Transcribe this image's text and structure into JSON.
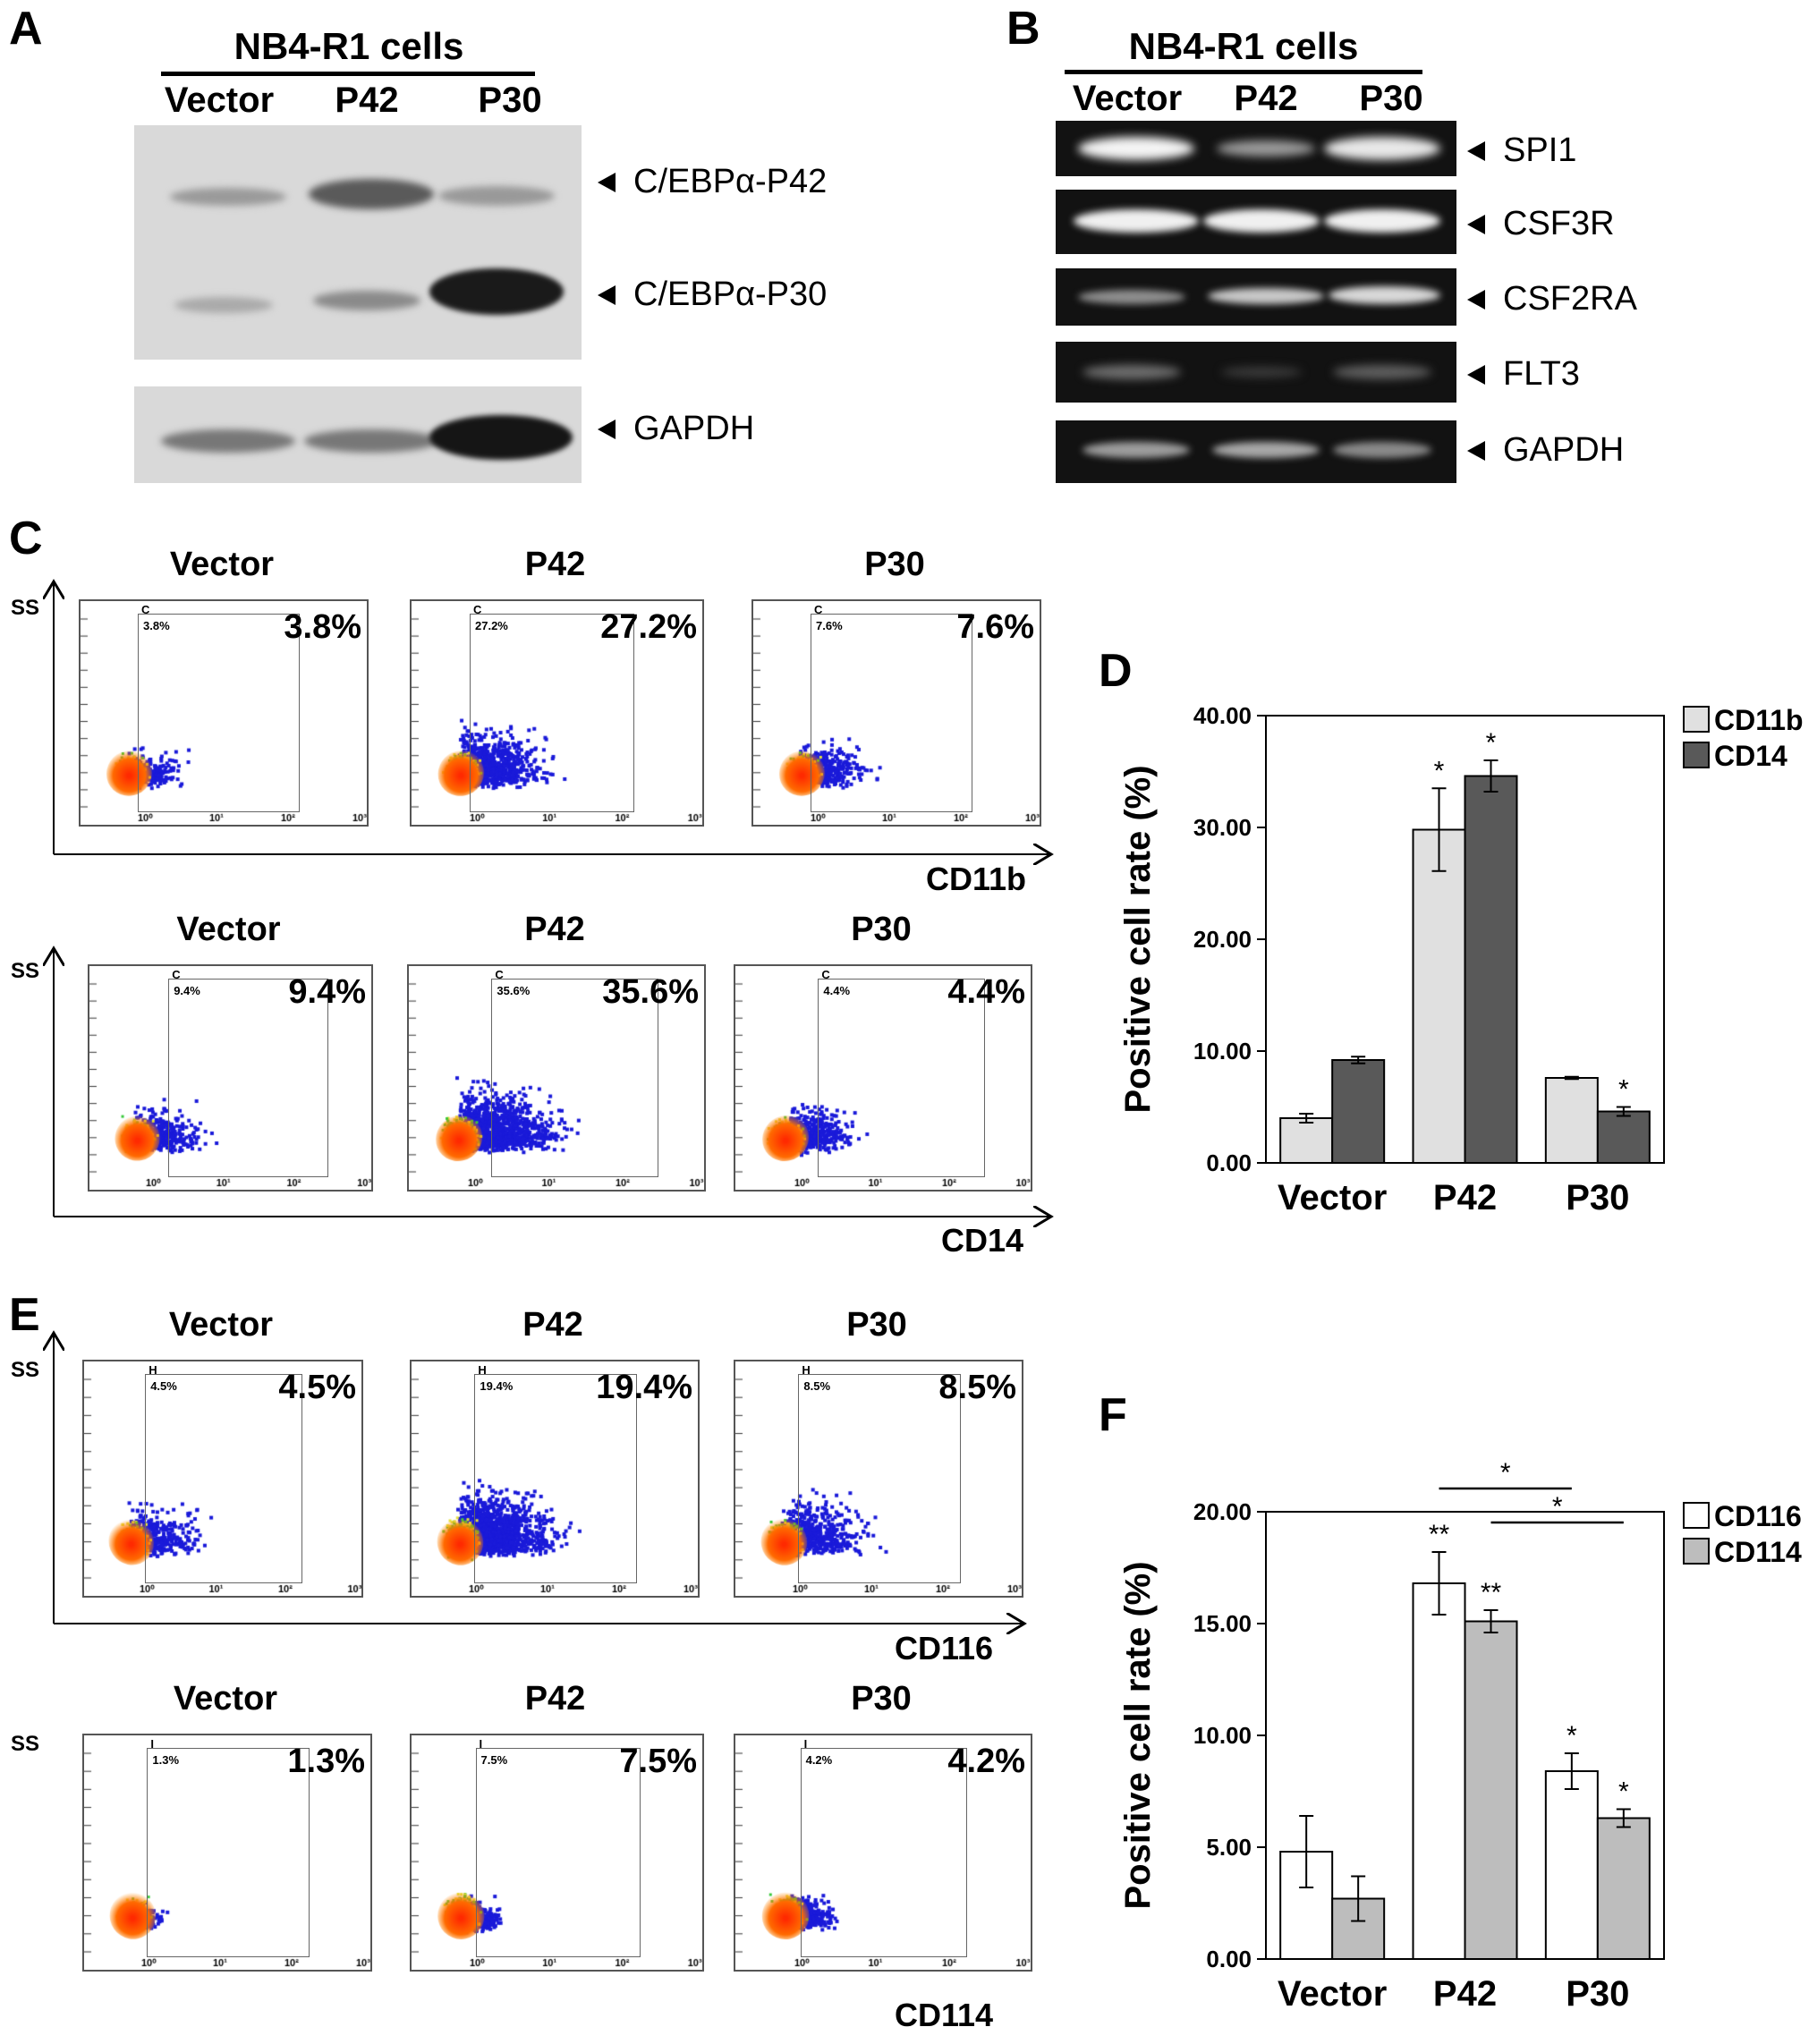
{
  "panel_a": {
    "label": "A",
    "header": "NB4-R1 cells",
    "lanes": [
      "Vector",
      "P42",
      "P30"
    ],
    "band_labels": [
      "C/EBPα-P42",
      "C/EBPα-P30",
      "GAPDH"
    ]
  },
  "panel_b": {
    "label": "B",
    "header": "NB4-R1 cells",
    "lanes": [
      "Vector",
      "P42",
      "P30"
    ],
    "genes": [
      "SPI1",
      "CSF3R",
      "CSF2RA",
      "FLT3",
      "GAPDH"
    ]
  },
  "panel_c": {
    "label": "C",
    "yaxis": "SS",
    "rows": [
      {
        "marker": "CD11b",
        "gate": "C",
        "plots": [
          {
            "title": "Vector",
            "pct": "3.8%",
            "small": "3.8%"
          },
          {
            "title": "P42",
            "pct": "27.2%",
            "small": "27.2%"
          },
          {
            "title": "P30",
            "pct": "7.6%",
            "small": "7.6%"
          }
        ]
      },
      {
        "marker": "CD14",
        "gate": "C",
        "plots": [
          {
            "title": "Vector",
            "pct": "9.4%",
            "small": "9.4%"
          },
          {
            "title": "P42",
            "pct": "35.6%",
            "small": "35.6%"
          },
          {
            "title": "P30",
            "pct": "4.4%",
            "small": "4.4%"
          }
        ]
      }
    ]
  },
  "panel_e": {
    "label": "E",
    "yaxis": "SS",
    "rows": [
      {
        "marker": "CD116",
        "gate": "H",
        "plots": [
          {
            "title": "Vector",
            "pct": "4.5%",
            "small": "4.5%"
          },
          {
            "title": "P42",
            "pct": "19.4%",
            "small": "19.4%"
          },
          {
            "title": "P30",
            "pct": "8.5%",
            "small": "8.5%"
          }
        ]
      },
      {
        "marker": "CD114",
        "gate": "I",
        "plots": [
          {
            "title": "Vector",
            "pct": "1.3%",
            "small": "1.3%"
          },
          {
            "title": "P42",
            "pct": "7.5%",
            "small": "7.5%"
          },
          {
            "title": "P30",
            "pct": "4.2%",
            "small": "4.2%"
          }
        ]
      }
    ]
  },
  "chart_data": [
    {
      "label": "D",
      "type": "bar",
      "ylabel": "Positive cell rate (%)",
      "ylim": [
        0,
        40
      ],
      "yticks": [
        "0.00",
        "10.00",
        "20.00",
        "30.00",
        "40.00"
      ],
      "categories": [
        "Vector",
        "P42",
        "P30"
      ],
      "series": [
        {
          "name": "CD11b",
          "color": "#e0e0e0",
          "values": [
            4.0,
            29.8,
            7.6
          ],
          "errors": [
            0.4,
            3.7,
            0.1
          ],
          "marks": [
            "",
            "*",
            ""
          ]
        },
        {
          "name": "CD14",
          "color": "#595959",
          "values": [
            9.2,
            34.6,
            4.6
          ],
          "errors": [
            0.3,
            1.4,
            0.4
          ],
          "marks": [
            "",
            "*",
            "*"
          ]
        }
      ],
      "legend": "right"
    },
    {
      "label": "F",
      "type": "bar",
      "ylabel": "Positive cell rate (%)",
      "ylim": [
        0,
        20
      ],
      "yticks": [
        "0.00",
        "5.00",
        "10.00",
        "15.00",
        "20.00"
      ],
      "categories": [
        "Vector",
        "P42",
        "P30"
      ],
      "series": [
        {
          "name": "CD116",
          "color": "#ffffff",
          "values": [
            4.8,
            16.8,
            8.4
          ],
          "errors": [
            1.6,
            1.4,
            0.8
          ],
          "marks": [
            "",
            "**",
            "*"
          ]
        },
        {
          "name": "CD114",
          "color": "#bdbdbd",
          "values": [
            2.7,
            15.1,
            6.3
          ],
          "errors": [
            1.0,
            0.5,
            0.4
          ],
          "marks": [
            "",
            "**",
            "*"
          ]
        }
      ],
      "brackets": [
        {
          "from": "P42 CD116",
          "to": "P30 CD116",
          "mark": "*"
        },
        {
          "from": "P42 CD114",
          "to": "P30 CD114",
          "mark": "*"
        }
      ],
      "legend": "right"
    }
  ],
  "flow_axis": {
    "decades": [
      "10⁰",
      "10¹",
      "10²",
      "10³"
    ],
    "ymax": "1023",
    "ymin": "0"
  }
}
